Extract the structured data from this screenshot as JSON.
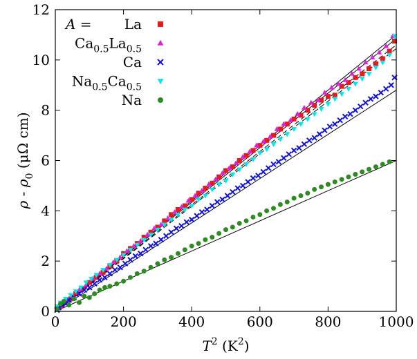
{
  "chart_data": {
    "type": "scatter",
    "title": "",
    "xlabel": {
      "var": "T",
      "sup": "2",
      "unit": " (K",
      "unit_sup": "2",
      "close": ")"
    },
    "ylabel": {
      "rho": "ρ",
      "mid": " - ",
      "rho0": "ρ",
      "sub": "0",
      "unit": " (μΩ cm)"
    },
    "xlim": [
      0,
      1000
    ],
    "ylim": [
      0,
      12
    ],
    "x_ticks": [
      0,
      200,
      400,
      600,
      800,
      1000
    ],
    "y_ticks": [
      0,
      2,
      4,
      6,
      8,
      10,
      12
    ],
    "legend": {
      "placement": "top-left",
      "header": "A =",
      "entries": [
        {
          "base": "La",
          "sub1": "",
          "mid": "",
          "sub2": ""
        },
        {
          "base": "Ca",
          "sub1": "0.5",
          "mid": "La",
          "sub2": "0.5"
        },
        {
          "base": "Ca",
          "sub1": "",
          "mid": "",
          "sub2": ""
        },
        {
          "base": "Na",
          "sub1": "0.5",
          "mid": "Ca",
          "sub2": "0.5"
        },
        {
          "base": "Na",
          "sub1": "",
          "mid": "",
          "sub2": ""
        }
      ]
    },
    "series": [
      {
        "name": "La",
        "marker": "square",
        "color": "#e41a1c",
        "x": [
          5,
          15,
          30,
          45,
          60,
          80,
          100,
          120,
          140,
          160,
          180,
          200,
          220,
          240,
          260,
          280,
          300,
          320,
          340,
          360,
          380,
          400,
          420,
          440,
          460,
          480,
          500,
          520,
          540,
          560,
          580,
          600,
          620,
          640,
          660,
          680,
          700,
          720,
          740,
          760,
          780,
          800,
          820,
          840,
          860,
          880,
          900,
          920,
          940,
          960,
          980,
          995
        ],
        "y": [
          0.1,
          0.2,
          0.35,
          0.5,
          0.7,
          0.9,
          1.15,
          1.35,
          1.55,
          1.8,
          2.0,
          2.3,
          2.5,
          2.7,
          2.95,
          3.15,
          3.35,
          3.6,
          3.85,
          4.05,
          4.2,
          4.45,
          4.7,
          4.9,
          5.1,
          5.35,
          5.6,
          5.75,
          6.0,
          6.2,
          6.4,
          6.6,
          6.8,
          7.0,
          7.25,
          7.45,
          7.65,
          7.8,
          8.0,
          8.2,
          8.4,
          8.55,
          8.6,
          8.95,
          9.1,
          9.3,
          9.45,
          9.65,
          9.85,
          10.05,
          10.35,
          10.75
        ]
      },
      {
        "name": "Ca0.5La0.5",
        "marker": "triangle-up",
        "color": "#e020e0",
        "x": [
          5,
          20,
          35,
          50,
          70,
          90,
          110,
          130,
          150,
          170,
          190,
          210,
          230,
          250,
          270,
          290,
          310,
          330,
          350,
          370,
          390,
          410,
          430,
          450,
          470,
          490,
          510,
          530,
          550,
          570,
          590,
          610,
          630,
          650,
          670,
          690,
          710,
          730,
          750,
          770,
          790,
          810,
          830,
          850,
          870,
          890,
          910,
          930,
          950,
          970,
          990
        ],
        "y": [
          0.15,
          0.3,
          0.45,
          0.6,
          0.85,
          1.05,
          1.3,
          1.5,
          1.7,
          1.95,
          2.15,
          2.4,
          2.6,
          2.8,
          3.05,
          3.3,
          3.45,
          3.7,
          3.95,
          4.15,
          4.4,
          4.6,
          4.8,
          5.05,
          5.25,
          5.5,
          5.7,
          5.9,
          6.15,
          6.35,
          6.6,
          6.75,
          6.95,
          7.25,
          7.45,
          7.6,
          7.85,
          8.1,
          8.3,
          8.4,
          8.7,
          8.9,
          9.05,
          9.2,
          9.45,
          9.65,
          9.9,
          10.1,
          10.3,
          10.55,
          10.95
        ]
      },
      {
        "name": "Ca",
        "marker": "cross",
        "color": "#1010e0",
        "x": [
          5,
          10,
          20,
          30,
          40,
          55,
          70,
          85,
          100,
          115,
          130,
          145,
          160,
          175,
          190,
          205,
          220,
          235,
          250,
          265,
          280,
          295,
          310,
          325,
          340,
          355,
          370,
          385,
          400,
          415,
          430,
          445,
          460,
          475,
          490,
          505,
          520,
          535,
          550,
          565,
          580,
          595,
          610,
          625,
          640,
          655,
          670,
          685,
          700,
          715,
          730,
          745,
          760,
          775,
          790,
          805,
          820,
          835,
          850,
          865,
          880,
          895,
          910,
          925,
          940,
          955,
          970,
          985,
          995
        ],
        "y": [
          0.05,
          0.15,
          0.25,
          0.3,
          0.45,
          0.55,
          0.7,
          0.85,
          0.95,
          1.1,
          1.25,
          1.35,
          1.5,
          1.65,
          1.75,
          1.9,
          2.05,
          2.2,
          2.3,
          2.45,
          2.6,
          2.7,
          2.85,
          3.0,
          3.15,
          3.3,
          3.4,
          3.55,
          3.65,
          3.8,
          3.95,
          4.05,
          4.2,
          4.35,
          4.45,
          4.6,
          4.75,
          4.9,
          5.0,
          5.15,
          5.3,
          5.4,
          5.55,
          5.7,
          5.85,
          5.95,
          6.1,
          6.25,
          6.4,
          6.5,
          6.65,
          6.8,
          6.9,
          7.05,
          7.2,
          7.35,
          7.45,
          7.6,
          7.75,
          7.85,
          8.0,
          8.15,
          8.3,
          8.45,
          8.55,
          8.7,
          8.85,
          9.0,
          9.3
        ]
      },
      {
        "name": "Na0.5Ca0.5",
        "marker": "triangle-down",
        "color": "#00e8e8",
        "x": [
          5,
          15,
          30,
          45,
          60,
          75,
          90,
          105,
          120,
          140,
          160,
          180,
          200,
          220,
          240,
          260,
          280,
          300,
          320,
          340,
          360,
          380,
          400,
          420,
          440,
          460,
          480,
          500,
          520,
          540,
          560,
          580,
          600,
          620,
          640,
          660,
          680,
          700,
          720,
          740,
          760,
          780,
          800,
          820,
          840,
          860,
          880,
          900,
          920,
          940,
          960,
          980,
          995
        ],
        "y": [
          0.2,
          0.35,
          0.5,
          0.65,
          0.8,
          0.95,
          1.15,
          1.3,
          1.45,
          1.65,
          1.85,
          2.05,
          2.25,
          2.45,
          2.65,
          2.85,
          3.05,
          3.25,
          3.45,
          3.65,
          3.85,
          4.05,
          4.2,
          4.45,
          4.6,
          4.85,
          5.05,
          5.2,
          5.45,
          5.65,
          5.85,
          6.05,
          6.3,
          6.45,
          6.65,
          6.85,
          7.05,
          7.25,
          7.45,
          7.65,
          7.85,
          8.05,
          8.25,
          8.45,
          8.65,
          8.85,
          9.05,
          9.25,
          9.45,
          9.7,
          9.9,
          10.2,
          10.95
        ]
      },
      {
        "name": "Na",
        "marker": "circle",
        "color": "#2e8b22",
        "x": [
          5,
          15,
          25,
          40,
          55,
          70,
          85,
          100,
          115,
          130,
          145,
          160,
          180,
          200,
          220,
          240,
          260,
          280,
          300,
          320,
          340,
          360,
          380,
          400,
          420,
          440,
          460,
          480,
          500,
          520,
          540,
          560,
          580,
          600,
          620,
          640,
          660,
          680,
          700,
          720,
          740,
          760,
          780,
          800,
          820,
          840,
          860,
          880,
          900,
          920,
          940,
          960,
          980
        ],
        "y": [
          0.1,
          0.3,
          0.4,
          0.25,
          0.5,
          0.35,
          0.6,
          0.55,
          0.7,
          0.85,
          0.95,
          1.0,
          1.1,
          1.2,
          1.35,
          1.5,
          1.6,
          1.75,
          1.9,
          2.05,
          2.15,
          2.3,
          2.45,
          2.6,
          2.7,
          2.85,
          2.95,
          3.1,
          3.25,
          3.35,
          3.5,
          3.6,
          3.75,
          3.85,
          4.0,
          4.1,
          4.25,
          4.35,
          4.5,
          4.6,
          4.7,
          4.85,
          4.95,
          5.05,
          5.15,
          5.25,
          5.35,
          5.45,
          5.55,
          5.65,
          5.75,
          5.85,
          5.95
        ]
      }
    ],
    "fits": [
      {
        "style": "solid",
        "x": [
          0,
          1000
        ],
        "y": [
          0.0,
          11.0
        ]
      },
      {
        "style": "solid",
        "x": [
          0,
          1000
        ],
        "y": [
          0.0,
          10.85
        ]
      },
      {
        "style": "dashed",
        "x": [
          0,
          1000
        ],
        "y": [
          0.0,
          10.6
        ]
      },
      {
        "style": "dashed",
        "x": [
          0,
          1000
        ],
        "y": [
          0.0,
          10.45
        ]
      },
      {
        "style": "solid",
        "x": [
          0,
          1000
        ],
        "y": [
          0.0,
          8.8
        ]
      },
      {
        "style": "solid",
        "x": [
          0,
          1000
        ],
        "y": [
          0.0,
          6.0
        ]
      }
    ]
  }
}
